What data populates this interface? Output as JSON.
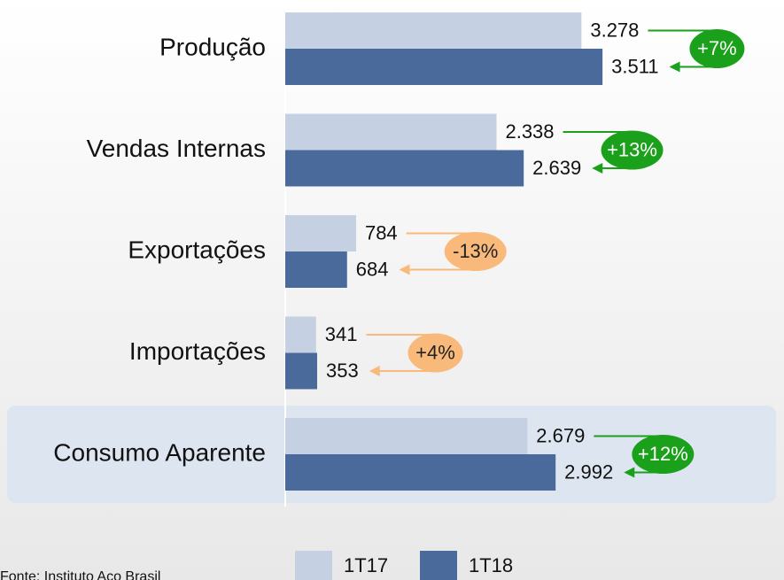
{
  "chart_data": {
    "type": "bar",
    "orientation": "horizontal",
    "categories": [
      "Produção",
      "Vendas Internas",
      "Exportações",
      "Importações",
      "Consumo Aparente"
    ],
    "series": [
      {
        "name": "1T17",
        "color": "#c5d0e3",
        "values": [
          3278,
          2338,
          784,
          341,
          2679
        ],
        "value_labels": [
          "3.278",
          "2.338",
          "784",
          "341",
          "2.679"
        ]
      },
      {
        "name": "1T18",
        "color": "#4a6a9c",
        "values": [
          3511,
          2639,
          684,
          353,
          2992
        ],
        "value_labels": [
          "3.511",
          "2.639",
          "684",
          "353",
          "2.992"
        ]
      }
    ],
    "annotations": [
      "+7%",
      "+13%",
      "-13%",
      "+4%",
      "+12%"
    ],
    "annotation_colors": [
      "#1aa01a",
      "#1aa01a",
      "#f9b97a",
      "#f9b97a",
      "#1aa01a"
    ],
    "annotation_text_colors": [
      "#ffffff",
      "#ffffff",
      "#222222",
      "#222222",
      "#ffffff"
    ],
    "source": "Fonte: Instituto Aço Brasil"
  }
}
